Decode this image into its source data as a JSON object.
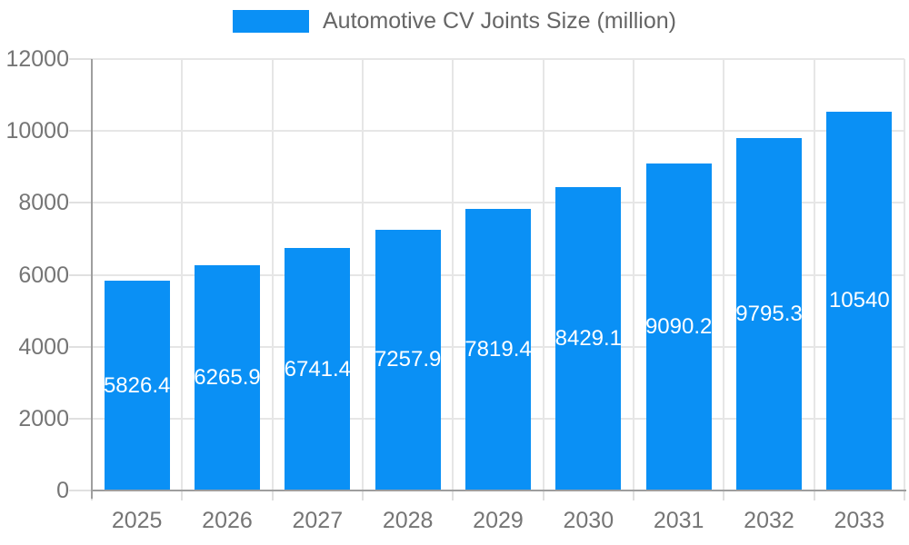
{
  "chart_data": {
    "type": "bar",
    "title": "Automotive CV Joints Size (million)",
    "categories": [
      "2025",
      "2026",
      "2027",
      "2028",
      "2029",
      "2030",
      "2031",
      "2032",
      "2033"
    ],
    "series": [
      {
        "name": "Automotive CV Joints Size (million)",
        "color": "#0A90F5",
        "values": [
          5826.4,
          6265.9,
          6741.4,
          7257.9,
          7819.4,
          8429.1,
          9090.2,
          9795.3,
          10540
        ]
      }
    ],
    "value_labels": [
      "5826.4",
      "6265.9",
      "6741.4",
      "7257.9",
      "7819.4",
      "8429.1",
      "9090.2",
      "9795.3",
      "10540"
    ],
    "xlabel": "",
    "ylabel": "",
    "ylim": [
      0,
      12000
    ],
    "ytick_interval": 2000,
    "ytick_labels": [
      "0",
      "2000",
      "4000",
      "6000",
      "8000",
      "10000",
      "12000"
    ],
    "grid": true,
    "legend_position": "top"
  },
  "colors": {
    "bar": "#0A90F5",
    "grid": "#e6e6e6",
    "tick": "#e0e0e0",
    "axis": "#9e9e9e",
    "axis_label": "#757575",
    "legend_text": "#666666",
    "value_label": "#ffffff",
    "background": "#ffffff"
  }
}
